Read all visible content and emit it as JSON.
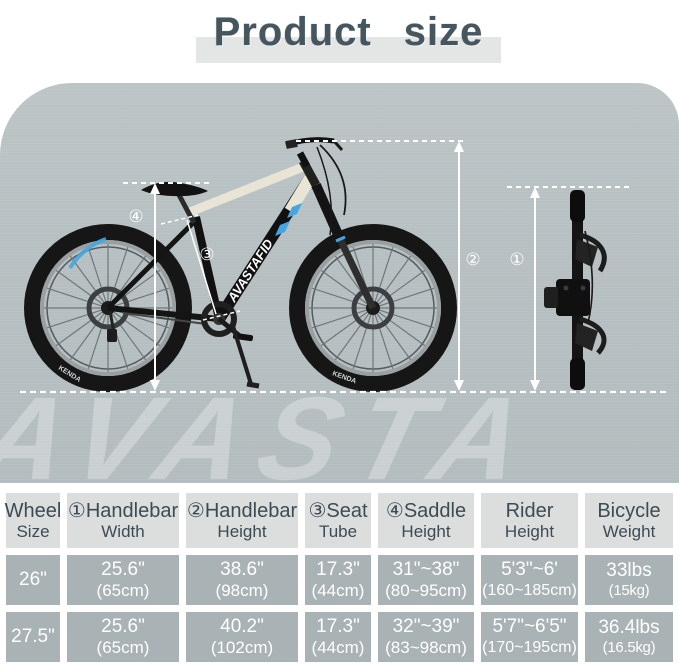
{
  "title": {
    "text": "Product size"
  },
  "watermark": "AVASTA",
  "scene": {
    "frame_brand": "AVASTAFID",
    "tire_brand": "KENDA",
    "callouts": {
      "c1": "①",
      "c2": "②",
      "c3": "③",
      "c4": "④"
    }
  },
  "colors": {
    "panel": "#b6bfc1",
    "header_bg": "#dcdddd",
    "header_text": "#3d4c54",
    "cell_bg": "#a9b2b5",
    "cell_text": "#ffffff",
    "title_text": "#46565f",
    "title_band": "#e4e5e5",
    "accent_blue": "#45a7e2",
    "annotation": "#ffffff"
  },
  "table": {
    "headers": [
      {
        "line1": "Wheel",
        "line2": "Size"
      },
      {
        "line1": "①Handlebar",
        "line2": "Width"
      },
      {
        "line1": "②Handlebar",
        "line2": "Height"
      },
      {
        "line1": "③Seat",
        "line2": "Tube"
      },
      {
        "line1": "④Saddle",
        "line2": "Height"
      },
      {
        "line1": "Rider",
        "line2": "Height"
      },
      {
        "line1": "Bicycle",
        "line2": "Weight"
      }
    ],
    "rows": [
      [
        {
          "line1": "26\"",
          "line2": ""
        },
        {
          "line1": "25.6\"",
          "line2": "(65cm)"
        },
        {
          "line1": "38.6\"",
          "line2": "(98cm)"
        },
        {
          "line1": "17.3\"",
          "line2": "(44cm)"
        },
        {
          "line1": "31\"~38\"",
          "line2": "(80~95cm)"
        },
        {
          "line1": "5'3\"~6'",
          "line2": "(160~185cm)"
        },
        {
          "line1": "33lbs",
          "line2": "(15kg)"
        }
      ],
      [
        {
          "line1": "27.5\"",
          "line2": ""
        },
        {
          "line1": "25.6\"",
          "line2": "(65cm)"
        },
        {
          "line1": "40.2\"",
          "line2": "(102cm)"
        },
        {
          "line1": "17.3\"",
          "line2": "(44cm)"
        },
        {
          "line1": "32\"~39\"",
          "line2": "(83~98cm)"
        },
        {
          "line1": "5'7\"~6'5\"",
          "line2": "(170~195cm)"
        },
        {
          "line1": "36.4lbs",
          "line2": "(16.5kg)"
        }
      ]
    ]
  }
}
